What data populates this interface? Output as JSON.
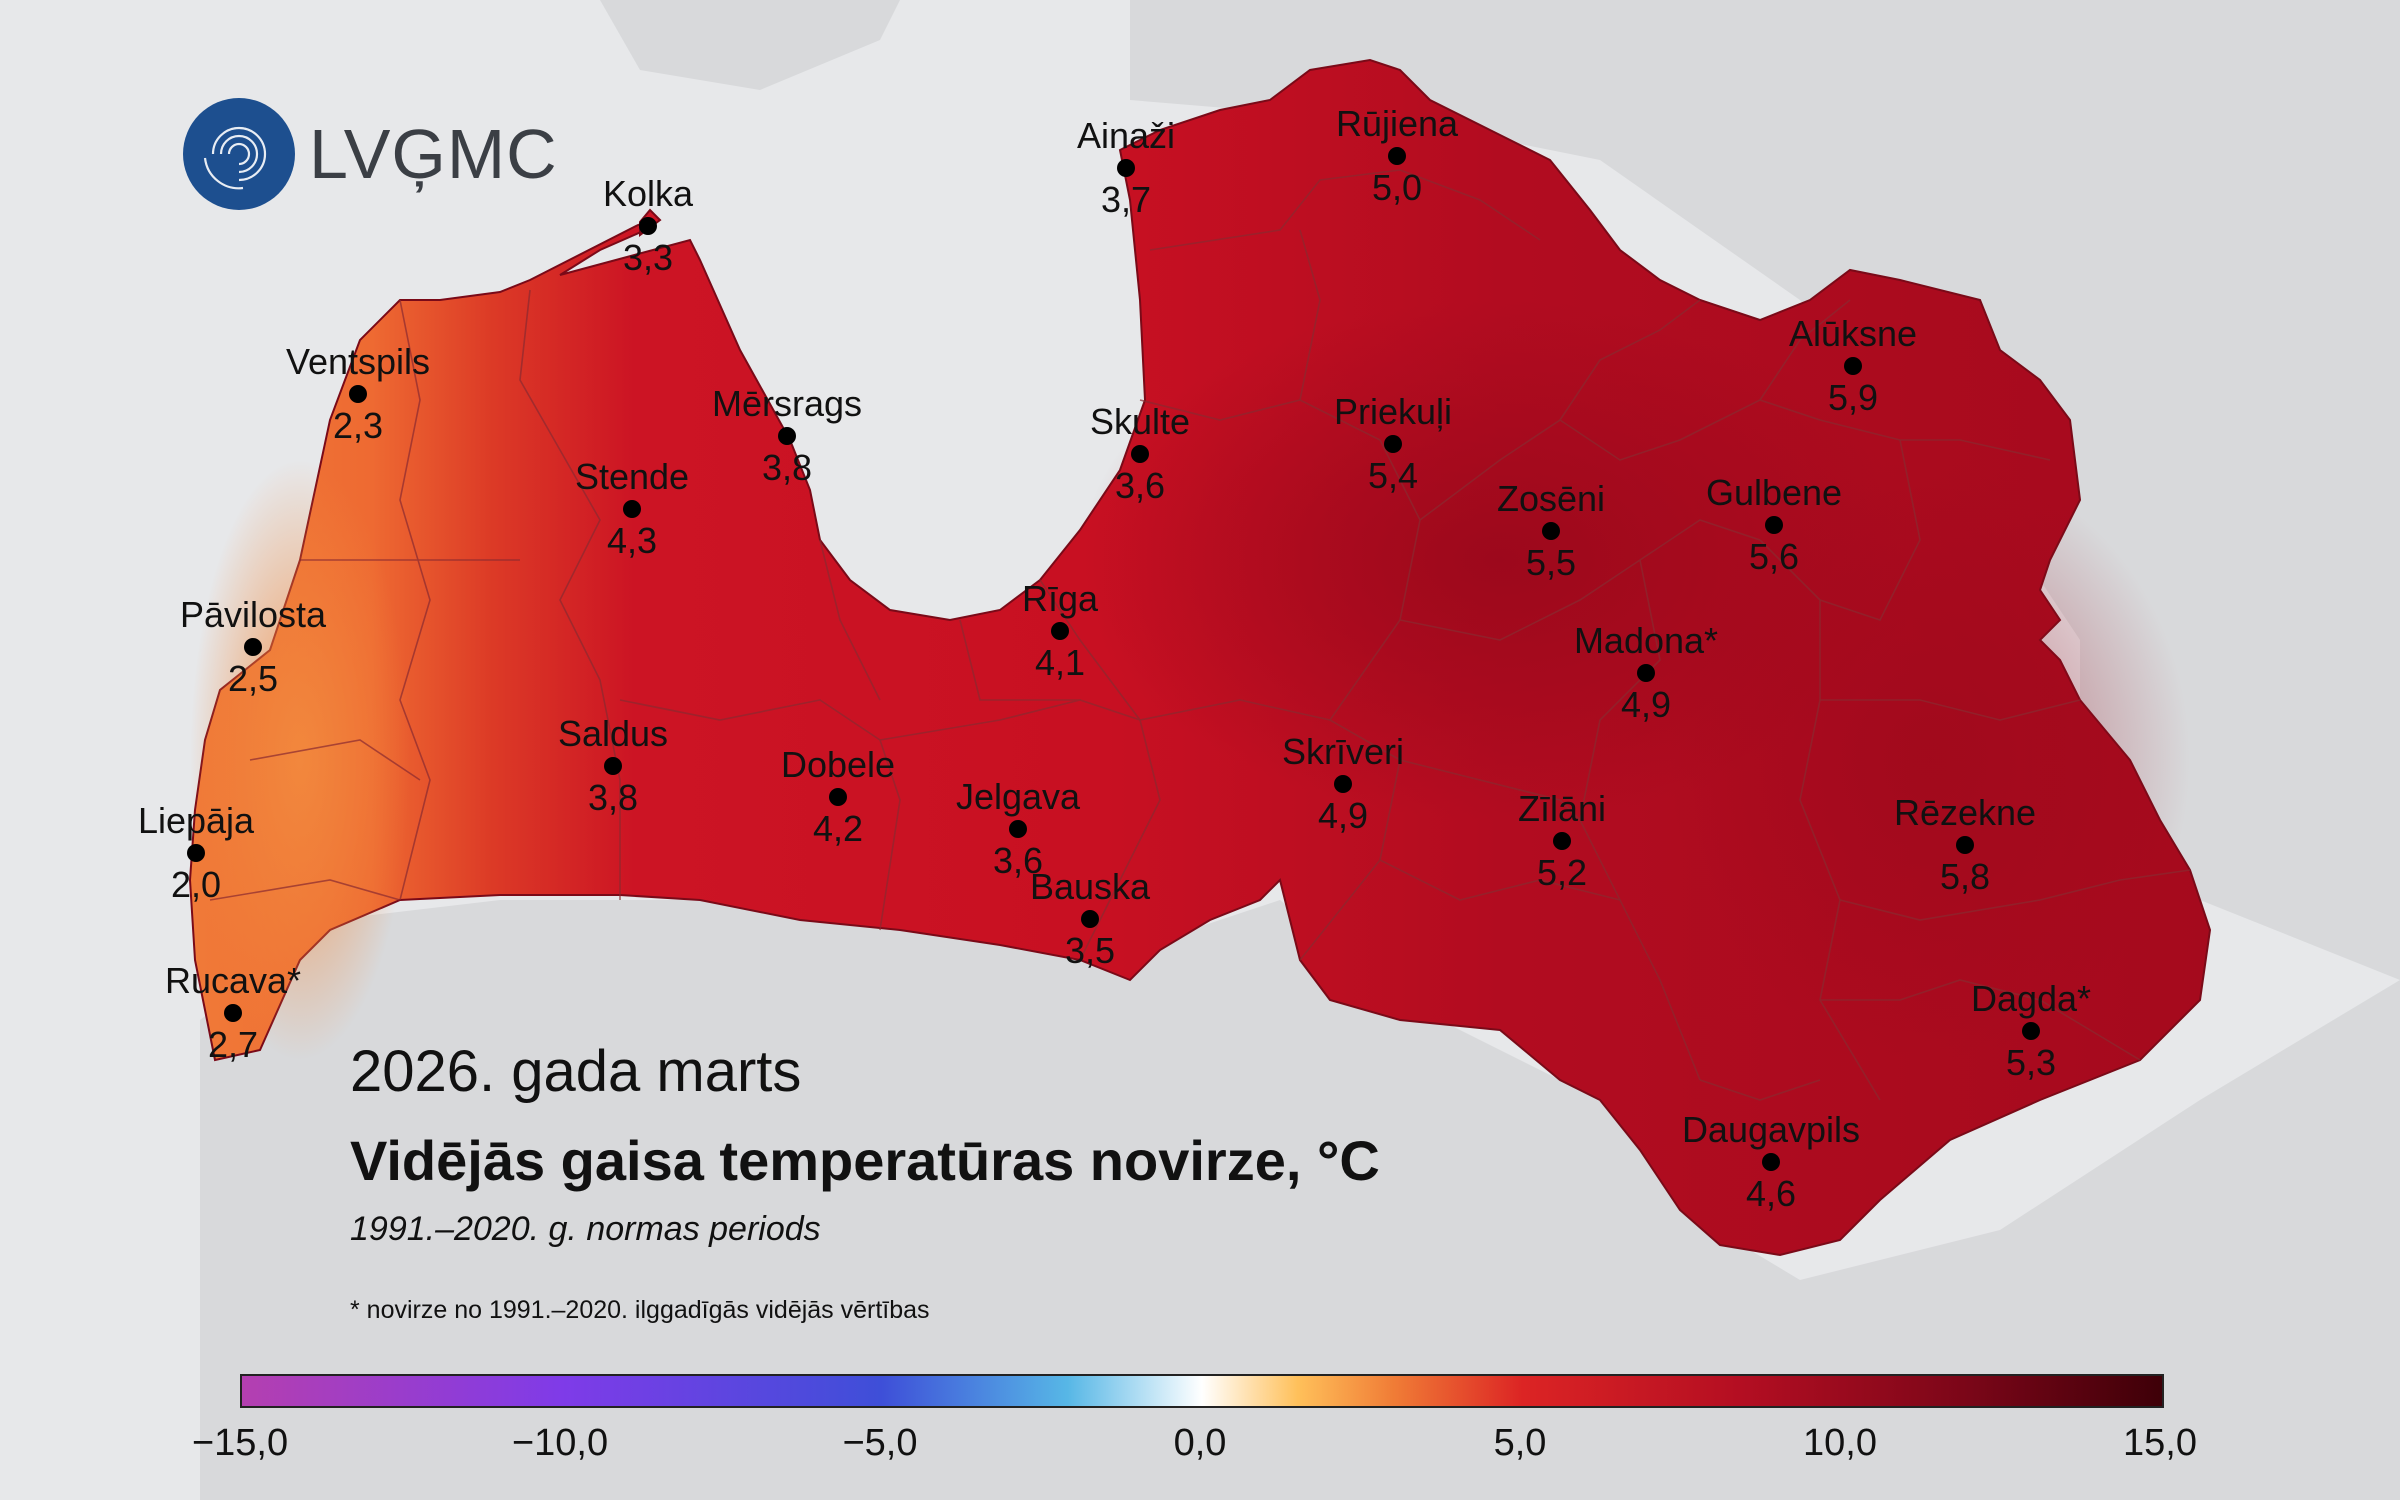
{
  "logo": {
    "text": "LVĢMC"
  },
  "title": {
    "period": "2026. gada marts",
    "main": "Vidējās gaisa temperatūras novirze, °C",
    "subtitle": "1991.–2020. g. normas periods",
    "footnote": "* novirze no 1991.–2020. ilggadīgās vidējās vērtības"
  },
  "legend": {
    "ticks": [
      "−15,0",
      "−10,0",
      "−5,0",
      "0,0",
      "5,0",
      "10,0",
      "15,0"
    ]
  },
  "colors": {
    "sea": "#e7e8ea",
    "land_outside": "#d8d9db",
    "west_coast": "#ee7236",
    "main": "#c81022",
    "east": "#a90a1e"
  },
  "stations": [
    {
      "name": "Kolka",
      "value": "3,3"
    },
    {
      "name": "Ventspils",
      "value": "2,3"
    },
    {
      "name": "Mērsrags",
      "value": "3,8"
    },
    {
      "name": "Stende",
      "value": "4,3"
    },
    {
      "name": "Pāvilosta",
      "value": "2,5"
    },
    {
      "name": "Liepāja",
      "value": "2,0"
    },
    {
      "name": "Rucava*",
      "value": "2,7"
    },
    {
      "name": "Saldus",
      "value": "3,8"
    },
    {
      "name": "Dobele",
      "value": "4,2"
    },
    {
      "name": "Jelgava",
      "value": "3,6"
    },
    {
      "name": "Bauska",
      "value": "3,5"
    },
    {
      "name": "Rīga",
      "value": "4,1"
    },
    {
      "name": "Skulte",
      "value": "3,6"
    },
    {
      "name": "Ainaži",
      "value": "3,7"
    },
    {
      "name": "Rūjiena",
      "value": "5,0"
    },
    {
      "name": "Priekuļi",
      "value": "5,4"
    },
    {
      "name": "Alūksne",
      "value": "5,9"
    },
    {
      "name": "Zosēni",
      "value": "5,5"
    },
    {
      "name": "Gulbene",
      "value": "5,6"
    },
    {
      "name": "Madona*",
      "value": "4,9"
    },
    {
      "name": "Skrīveri",
      "value": "4,9"
    },
    {
      "name": "Zīlāni",
      "value": "5,2"
    },
    {
      "name": "Rēzekne",
      "value": "5,8"
    },
    {
      "name": "Dagda*",
      "value": "5,3"
    },
    {
      "name": "Daugavpils",
      "value": "4,6"
    }
  ]
}
